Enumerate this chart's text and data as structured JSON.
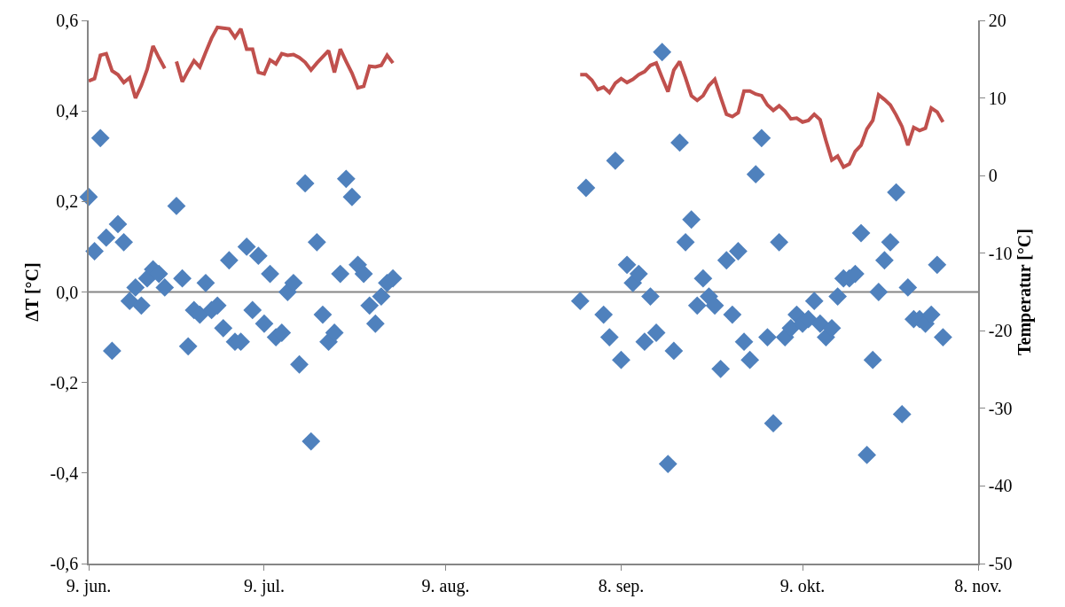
{
  "chart_data": {
    "type": "scatter",
    "ylabel": "ΔT [°C]",
    "y2label": "Temperatur [°C]",
    "xlim": [
      "--06-09",
      "--11-08"
    ],
    "xticks": [
      {
        "value": "--06-09",
        "label": "9. jun."
      },
      {
        "value": "--07-09",
        "label": "9. jul."
      },
      {
        "value": "--08-09",
        "label": "9. aug."
      },
      {
        "value": "--09-08",
        "label": "8. sep."
      },
      {
        "value": "--10-09",
        "label": "9. okt."
      },
      {
        "value": "--11-08",
        "label": "8. nov."
      }
    ],
    "ylim": [
      -0.6,
      0.6
    ],
    "yticks": [
      {
        "value": -0.6,
        "label": "-0,6"
      },
      {
        "value": -0.4,
        "label": "-0,4"
      },
      {
        "value": -0.2,
        "label": "-0,2"
      },
      {
        "value": 0,
        "label": "0,0"
      },
      {
        "value": 0.2,
        "label": "0,2"
      },
      {
        "value": 0.4,
        "label": "0,4"
      },
      {
        "value": 0.6,
        "label": "0,6"
      }
    ],
    "y2lim": [
      -50,
      20
    ],
    "y2ticks": [
      -50,
      -40,
      -30,
      -20,
      -10,
      0,
      10,
      20
    ],
    "ref_lines": [
      {
        "axis": "y",
        "value": 0,
        "color": "#868686"
      }
    ],
    "series": [
      {
        "marker": "diamond",
        "color": "#4f81bd",
        "x": [
          "--06-09",
          "--06-10",
          "--06-11",
          "--06-12",
          "--06-13",
          "--06-14",
          "--06-15",
          "--06-16",
          "--06-17",
          "--06-18",
          "--06-19",
          "--06-20",
          "--06-21",
          "--06-22",
          "--06-24",
          "--06-25",
          "--06-26",
          "--06-27",
          "--06-28",
          "--06-29",
          "--06-30",
          "--07-01",
          "--07-02",
          "--07-03",
          "--07-04",
          "--07-05",
          "--07-06",
          "--07-07",
          "--07-08",
          "--07-09",
          "--07-10",
          "--07-11",
          "--07-12",
          "--07-13",
          "--07-14",
          "--07-15",
          "--07-16",
          "--07-17",
          "--07-18",
          "--07-19",
          "--07-20",
          "--07-21",
          "--07-22",
          "--07-23",
          "--07-24",
          "--07-25",
          "--07-26",
          "--07-27",
          "--07-28",
          "--07-29",
          "--07-30",
          "--07-31",
          "--09-01",
          "--09-02",
          "--09-05",
          "--09-06",
          "--09-07",
          "--09-08",
          "--09-09",
          "--09-10",
          "--09-11",
          "--09-12",
          "--09-13",
          "--09-14",
          "--09-15",
          "--09-16",
          "--09-17",
          "--09-18",
          "--09-19",
          "--09-20",
          "--09-21",
          "--09-22",
          "--09-23",
          "--09-24",
          "--09-25",
          "--09-26",
          "--09-27",
          "--09-28",
          "--09-29",
          "--09-30",
          "--10-01",
          "--10-02",
          "--10-03",
          "--10-04",
          "--10-05",
          "--10-06",
          "--10-07",
          "--10-08",
          "--10-09",
          "--10-10",
          "--10-11",
          "--10-12",
          "--10-13",
          "--10-14",
          "--10-15",
          "--10-16",
          "--10-17",
          "--10-18",
          "--10-19",
          "--10-20",
          "--10-21",
          "--10-22",
          "--10-23",
          "--10-24",
          "--10-25",
          "--10-26",
          "--10-27",
          "--10-28",
          "--10-29",
          "--10-30",
          "--10-31",
          "--11-01",
          "--11-02"
        ],
        "values": [
          0.21,
          0.09,
          0.34,
          0.12,
          -0.13,
          0.15,
          0.11,
          -0.02,
          0.01,
          -0.03,
          0.03,
          0.05,
          0.04,
          0.01,
          0.19,
          0.03,
          -0.12,
          -0.04,
          -0.05,
          0.02,
          -0.04,
          -0.03,
          -0.08,
          0.07,
          -0.11,
          -0.11,
          0.1,
          -0.04,
          0.08,
          -0.07,
          0.04,
          -0.1,
          -0.09,
          0.0,
          0.02,
          -0.16,
          0.24,
          -0.33,
          0.11,
          -0.05,
          -0.11,
          -0.09,
          0.04,
          0.25,
          0.21,
          0.06,
          0.04,
          -0.03,
          -0.07,
          -0.01,
          0.02,
          0.03,
          -0.02,
          0.23,
          -0.05,
          -0.1,
          0.29,
          -0.15,
          0.06,
          0.02,
          0.04,
          -0.11,
          -0.01,
          -0.09,
          0.53,
          -0.38,
          -0.13,
          0.33,
          0.11,
          0.16,
          -0.03,
          0.03,
          -0.01,
          -0.03,
          -0.17,
          0.07,
          -0.05,
          0.09,
          -0.11,
          -0.15,
          0.26,
          0.34,
          -0.1,
          -0.29,
          0.11,
          -0.1,
          -0.08,
          -0.05,
          -0.07,
          -0.06,
          -0.02,
          -0.07,
          -0.1,
          -0.08,
          -0.01,
          0.03,
          0.03,
          0.04,
          0.13,
          -0.36,
          -0.15,
          0.0,
          0.07,
          0.11,
          0.22,
          -0.27,
          0.01,
          -0.06,
          -0.06,
          -0.07,
          -0.05,
          0.06,
          -0.1
        ]
      },
      {
        "type": "line",
        "axis": "y2",
        "marker": "none",
        "line_style": "solid",
        "color": "#c0504d",
        "x": [
          "--06-09",
          "--06-10",
          "--06-11",
          "--06-12",
          "--06-13",
          "--06-14",
          "--06-15",
          "--06-16",
          "--06-17",
          "--06-18",
          "--06-19",
          "--06-20",
          "--06-21",
          "--06-22",
          "--06-23",
          "--06-24",
          "--06-25",
          "--06-26",
          "--06-27",
          "--06-28",
          "--06-29",
          "--06-30",
          "--07-01",
          "--07-02",
          "--07-03",
          "--07-04",
          "--07-05",
          "--07-06",
          "--07-07",
          "--07-08",
          "--07-09",
          "--07-10",
          "--07-11",
          "--07-12",
          "--07-13",
          "--07-14",
          "--07-15",
          "--07-16",
          "--07-17",
          "--07-18",
          "--07-19",
          "--07-20",
          "--07-21",
          "--07-22",
          "--07-23",
          "--07-24",
          "--07-25",
          "--07-26",
          "--07-27",
          "--07-28",
          "--07-29",
          "--07-30",
          "--07-31",
          "--08-01",
          "--09-01",
          "--09-02",
          "--09-03",
          "--09-04",
          "--09-05",
          "--09-06",
          "--09-07",
          "--09-08",
          "--09-09",
          "--09-10",
          "--09-11",
          "--09-12",
          "--09-13",
          "--09-14",
          "--09-15",
          "--09-16",
          "--09-17",
          "--09-18",
          "--09-19",
          "--09-20",
          "--09-21",
          "--09-22",
          "--09-23",
          "--09-24",
          "--09-25",
          "--09-26",
          "--09-27",
          "--09-28",
          "--09-29",
          "--09-30",
          "--10-01",
          "--10-02",
          "--10-03",
          "--10-04",
          "--10-05",
          "--10-06",
          "--10-07",
          "--10-08",
          "--10-09",
          "--10-10",
          "--10-11",
          "--10-12",
          "--10-13",
          "--10-14",
          "--10-15",
          "--10-16",
          "--10-17",
          "--10-18",
          "--10-19",
          "--10-20",
          "--10-21",
          "--10-22",
          "--10-23",
          "--10-24",
          "--10-25",
          "--10-26",
          "--10-27",
          "--10-28",
          "--10-29",
          "--10-30",
          "--10-31",
          "--11-01",
          "--11-02"
        ],
        "values": [
          12.2,
          12.5,
          15.5,
          15.7,
          13.5,
          13.0,
          12.0,
          12.6,
          10.0,
          11.6,
          13.7,
          16.7,
          15.2,
          13.8,
          null,
          14.7,
          12.1,
          13.5,
          14.8,
          14.0,
          15.9,
          17.7,
          19.1,
          19.0,
          18.9,
          17.8,
          18.9,
          16.3,
          16.3,
          13.3,
          13.1,
          14.9,
          14.4,
          15.7,
          15.5,
          15.6,
          15.2,
          14.6,
          13.6,
          14.5,
          15.3,
          16.1,
          13.3,
          16.3,
          14.7,
          13.2,
          11.3,
          11.5,
          14.1,
          14.0,
          14.2,
          15.5,
          14.5,
          null,
          13.0,
          13.0,
          12.3,
          11.1,
          11.4,
          10.7,
          11.9,
          12.5,
          12.0,
          12.4,
          13.0,
          13.4,
          14.2,
          14.5,
          12.6,
          10.8,
          13.6,
          14.7,
          12.6,
          10.3,
          9.7,
          10.3,
          11.6,
          12.4,
          10.1,
          7.9,
          7.6,
          8.1,
          10.9,
          10.9,
          10.5,
          10.3,
          9.1,
          8.4,
          9.0,
          8.3,
          7.3,
          7.4,
          6.9,
          7.1,
          7.9,
          7.2,
          4.5,
          2.0,
          2.5,
          1.1,
          1.5,
          3.1,
          3.9,
          6.0,
          7.1,
          10.4,
          9.8,
          9.1,
          7.8,
          6.3,
          3.9,
          6.2,
          5.8,
          6.1,
          8.7,
          8.2,
          6.9
        ]
      }
    ]
  }
}
